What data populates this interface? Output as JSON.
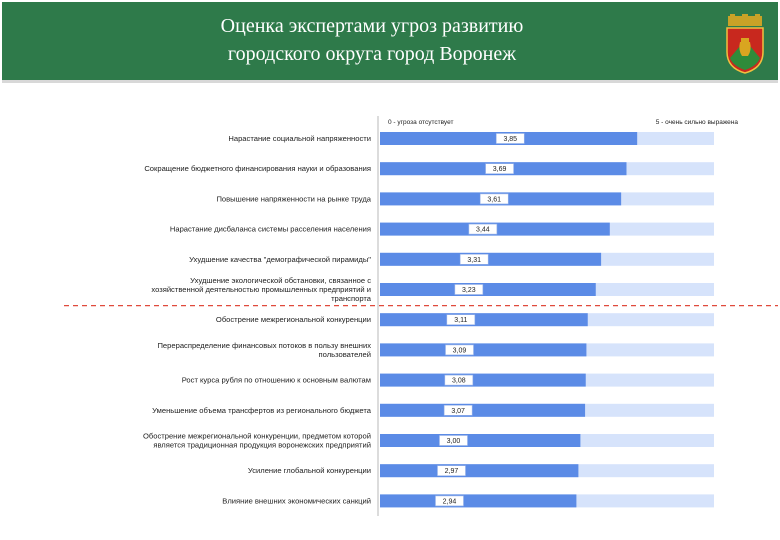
{
  "header": {
    "title_line1": "Оценка экспертами угроз развитию",
    "title_line2": "городского округа город Воронеж"
  },
  "colors": {
    "banner": "#2e7a4a",
    "bar_value": "#5b8be6",
    "bar_track": "#d6e3fb",
    "threshold_line": "#e04a3c"
  },
  "icons": {
    "crest": "voronezh-coat-of-arms-icon"
  },
  "chart_data": {
    "type": "bar",
    "orientation": "horizontal",
    "scale_min_label": "0 - угроза отсутствует",
    "scale_max_label": "5 - очень сильно выражена",
    "xlim": [
      0,
      5
    ],
    "categories": [
      "Нарастание социальной напряженности",
      "Сокращение бюджетного финансирования науки и образования",
      "Повышение напряженности на рынке труда",
      "Нарастание дисбаланса системы расселения населения",
      "Ухудшение качества \"демографической пирамиды\"",
      "Ухудшение экологической обстановки, связанное с хозяйственной деятельностью промышленных предприятий и транспорта",
      "Обострение межрегиональной конкуренции",
      "Перераспределение финансовых потоков в пользу внешних пользователей",
      "Рост курса рубля по отношению к основным валютам",
      "Уменьшение объема трансфертов из регионального бюджета",
      "Обострение межрегиональной конкуренции, предметом которой является традиционная продукция воронежских предприятий",
      "Усиление глобальной конкуренции",
      "Влияние внешних экономических санкций"
    ],
    "values": [
      3.85,
      3.69,
      3.61,
      3.44,
      3.31,
      3.23,
      3.11,
      3.09,
      3.08,
      3.07,
      3.0,
      2.97,
      2.94
    ],
    "value_labels": [
      "3,85",
      "3,69",
      "3,61",
      "3,44",
      "3,31",
      "3,23",
      "3,11",
      "3,09",
      "3,08",
      "3,07",
      "3,00",
      "2,97",
      "2,94"
    ],
    "threshold_after_index": 5
  }
}
